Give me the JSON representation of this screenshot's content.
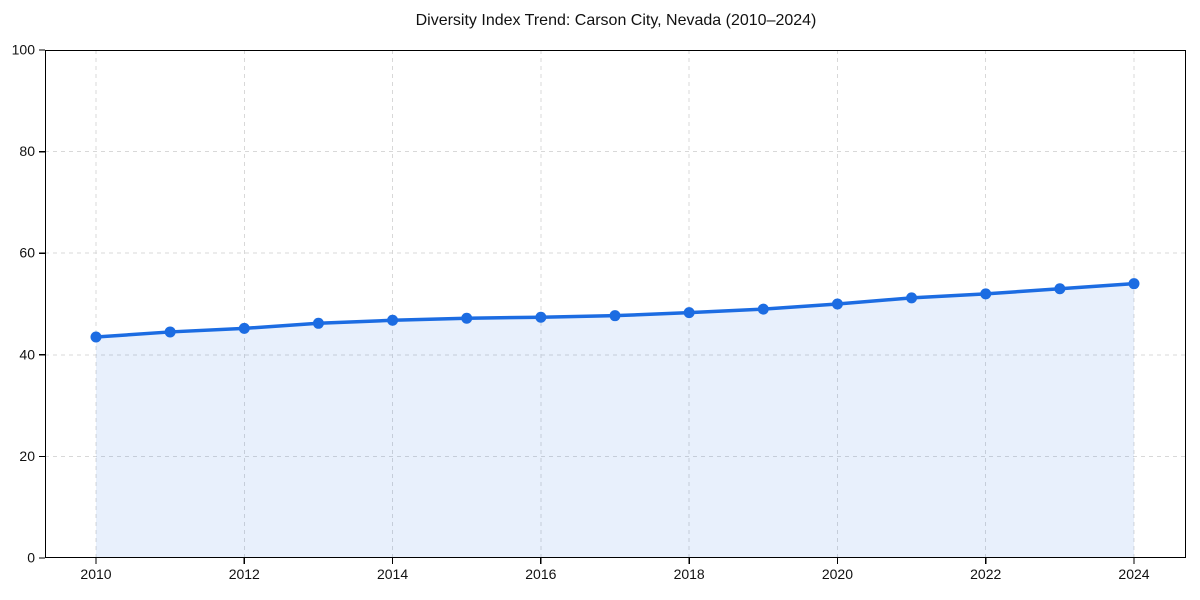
{
  "chart_data": {
    "type": "area",
    "title": "Diversity Index Trend: Carson City, Nevada (2010–2024)",
    "xlabel": "",
    "ylabel": "",
    "x": [
      2010,
      2011,
      2012,
      2013,
      2014,
      2015,
      2016,
      2017,
      2018,
      2019,
      2020,
      2021,
      2022,
      2023,
      2024
    ],
    "values": [
      43.5,
      44.5,
      45.2,
      46.2,
      46.8,
      47.2,
      47.4,
      47.7,
      48.3,
      49.0,
      50.0,
      51.2,
      52.0,
      53.0,
      54.0
    ],
    "series_name": "Diversity Index",
    "xlim": [
      2010,
      2024
    ],
    "ylim": [
      0,
      100
    ],
    "yticks": [
      0,
      20,
      40,
      60,
      80,
      100
    ],
    "xticks": [
      2010,
      2012,
      2014,
      2016,
      2018,
      2020,
      2022,
      2024
    ],
    "grid": "dashed-both-axes",
    "legend": "none",
    "colors": {
      "line": "#1c6ce2",
      "marker": "#1c6ce2",
      "fill": "#1c6ce2",
      "fill_opacity": 0.1,
      "grid": "#d8d8d8",
      "spine": "#000000",
      "tick_text": "#111111",
      "title_text": "#111111",
      "background": "#ffffff"
    },
    "marker_style": "circle",
    "line_width": 3.5,
    "marker_radius": 5.5
  }
}
